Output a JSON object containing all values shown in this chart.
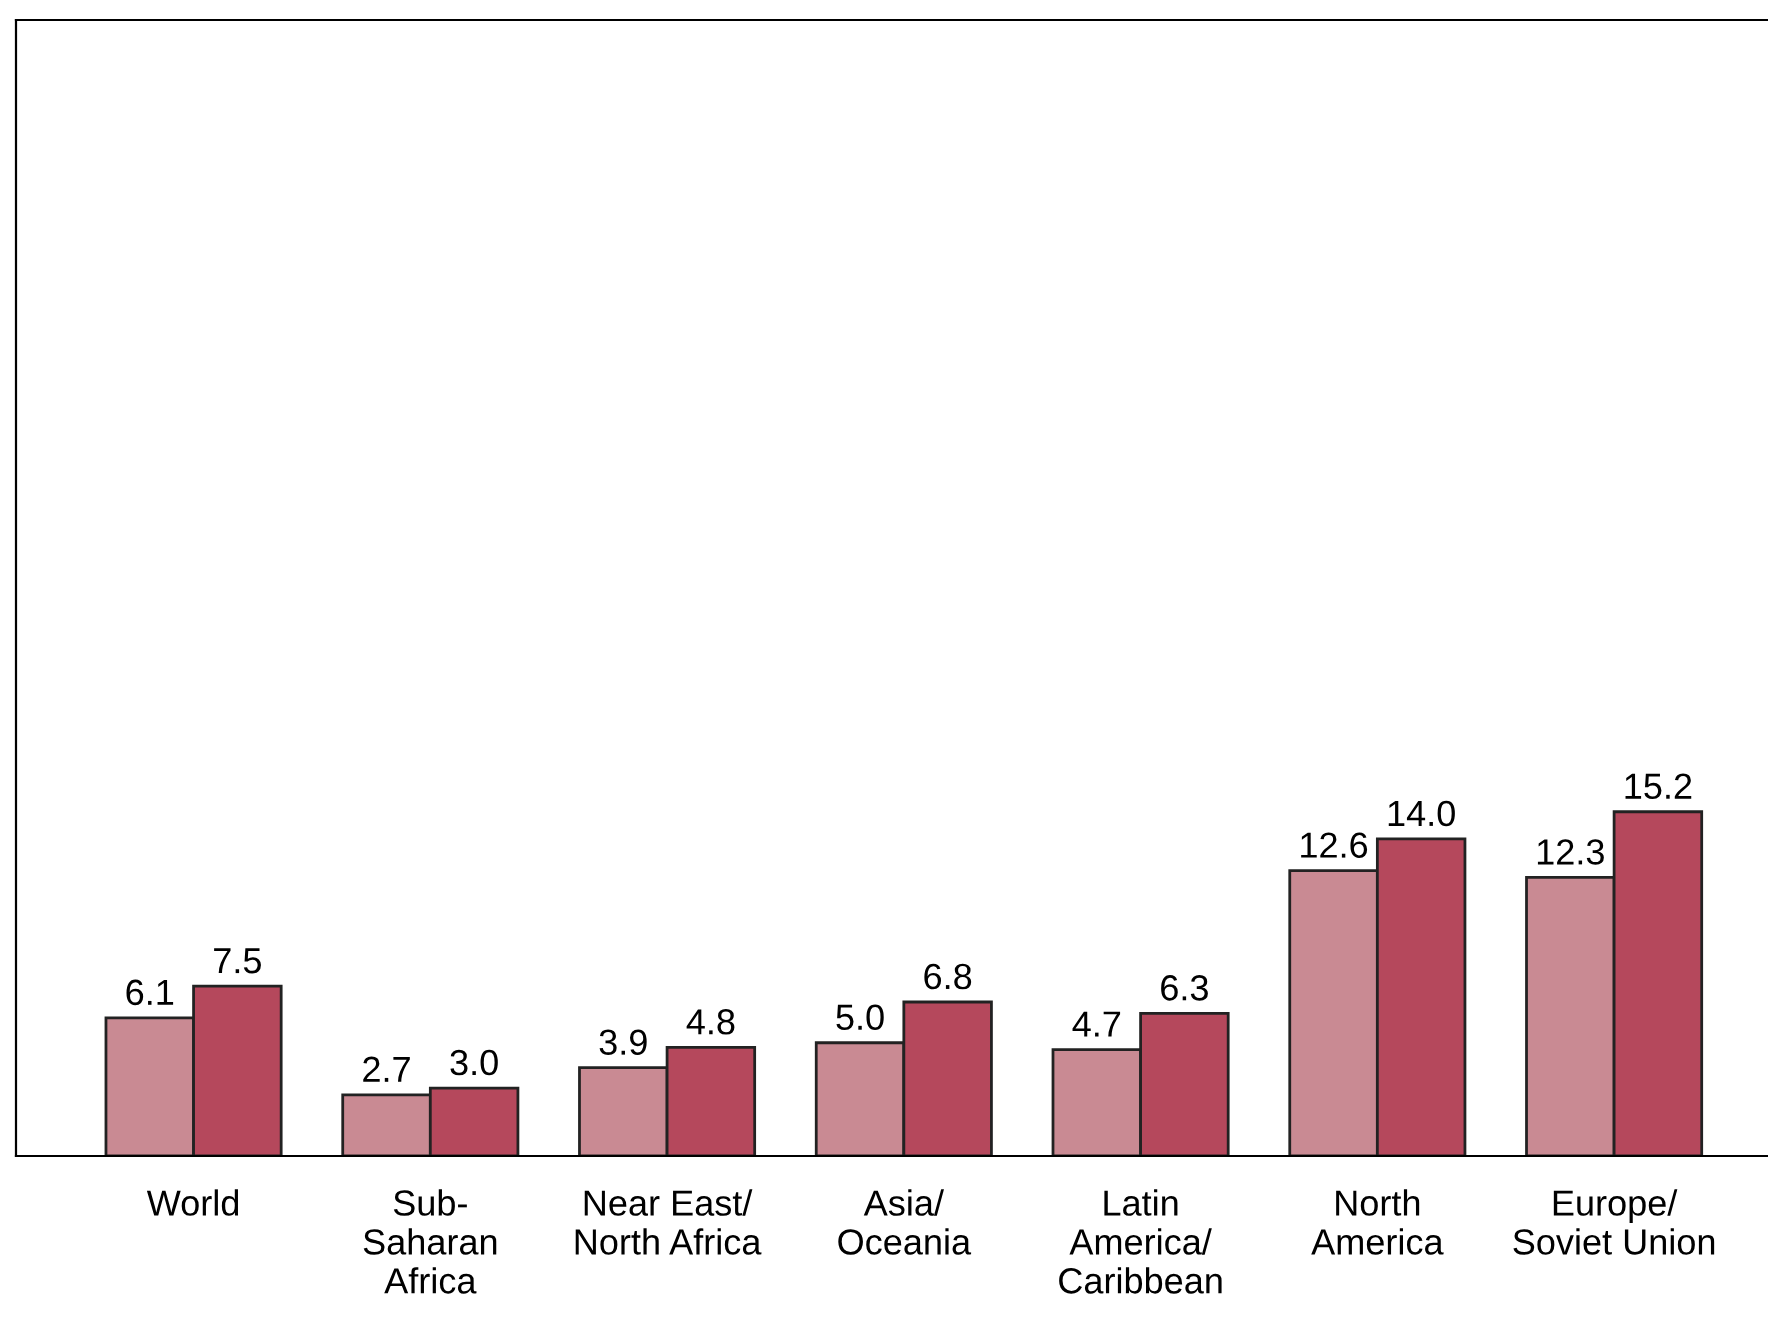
{
  "chart_data": {
    "type": "bar",
    "categories": [
      "World",
      "Sub-\nSaharan\nAfrica",
      "Near East/\nNorth Africa",
      "Asia/\nOceania",
      "Latin\nAmerica/\nCaribbean",
      "North\nAmerica",
      "Europe/\nSoviet Union"
    ],
    "series": [
      {
        "color": "#c98a93",
        "values": [
          6.1,
          2.7,
          3.9,
          5.0,
          4.7,
          12.6,
          12.3
        ],
        "value_labels": [
          "6.1",
          "2.7",
          "3.9",
          "5.0",
          "4.7",
          "12.6",
          "12.3"
        ]
      },
      {
        "color": "#b5485c",
        "values": [
          7.5,
          3.0,
          4.8,
          6.8,
          6.3,
          14.0,
          15.2
        ],
        "value_labels": [
          "7.5",
          "3.0",
          "4.8",
          "6.8",
          "6.3",
          "14.0",
          "15.2"
        ]
      }
    ]
  }
}
